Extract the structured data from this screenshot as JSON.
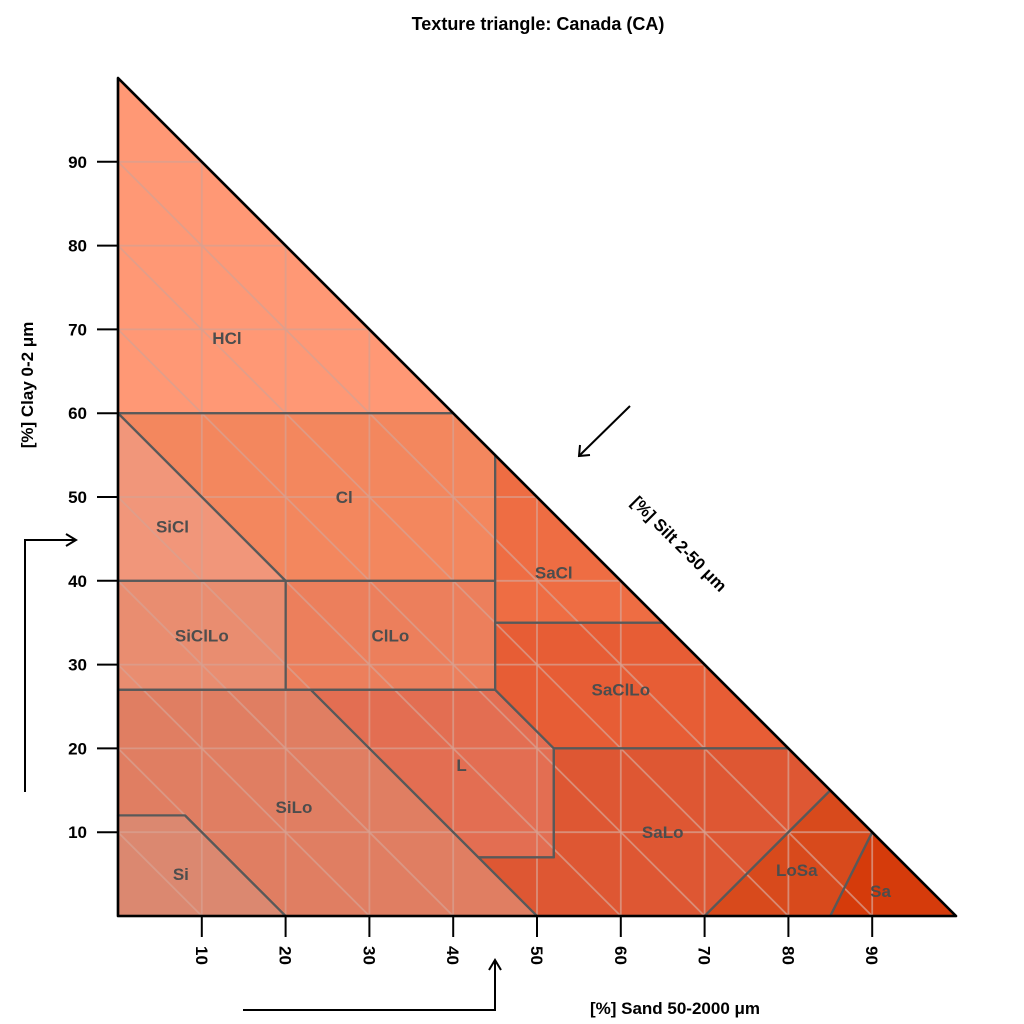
{
  "chart_data": {
    "type": "ternary",
    "title": "Texture triangle: Canada (CA)",
    "axes": {
      "x": {
        "label": "[%] Sand 50-2000 μm",
        "ticks": [
          10,
          20,
          30,
          40,
          50,
          60,
          70,
          80,
          90
        ]
      },
      "y": {
        "label": "[%] Clay 0-2 μm",
        "ticks": [
          10,
          20,
          30,
          40,
          50,
          60,
          70,
          80,
          90
        ]
      },
      "z": {
        "label": "[%] Silt 2-50 μm"
      }
    },
    "grid": true,
    "classes": [
      {
        "abbr": "HCl",
        "color": "#ff9875",
        "polygon": [
          [
            0,
            100
          ],
          [
            0,
            60
          ],
          [
            40,
            60
          ]
        ],
        "label_at": [
          13,
          69
        ]
      },
      {
        "abbr": "Cl",
        "color": "#f3875e",
        "polygon": [
          [
            0,
            60
          ],
          [
            40,
            60
          ],
          [
            45,
            55
          ],
          [
            45,
            40
          ],
          [
            20,
            40
          ]
        ],
        "label_at": [
          27,
          50
        ]
      },
      {
        "abbr": "SiCl",
        "color": "#f1967a",
        "polygon": [
          [
            0,
            60
          ],
          [
            20,
            40
          ],
          [
            0,
            40
          ]
        ],
        "label_at": [
          6.5,
          46.5
        ]
      },
      {
        "abbr": "SiClLo",
        "color": "#e98d70",
        "polygon": [
          [
            0,
            40
          ],
          [
            20,
            40
          ],
          [
            20,
            27
          ],
          [
            0,
            27
          ]
        ],
        "label_at": [
          10,
          33.5
        ]
      },
      {
        "abbr": "ClLo",
        "color": "#ec7f5c",
        "polygon": [
          [
            20,
            40
          ],
          [
            45,
            40
          ],
          [
            45,
            27
          ],
          [
            20,
            27
          ]
        ],
        "label_at": [
          32.5,
          33.5
        ]
      },
      {
        "abbr": "SaCl",
        "color": "#ee6d43",
        "polygon": [
          [
            45,
            55
          ],
          [
            45,
            35
          ],
          [
            65,
            35
          ]
        ],
        "label_at": [
          52,
          41
        ]
      },
      {
        "abbr": "SaClLo",
        "color": "#e75d35",
        "polygon": [
          [
            45,
            35
          ],
          [
            65,
            35
          ],
          [
            80,
            20
          ],
          [
            52,
            20
          ],
          [
            45,
            27
          ]
        ],
        "label_at": [
          60,
          27
        ]
      },
      {
        "abbr": "SiLo",
        "color": "#e07e62",
        "polygon": [
          [
            0,
            27
          ],
          [
            23,
            27
          ],
          [
            50,
            0
          ],
          [
            20,
            0
          ],
          [
            8,
            12
          ],
          [
            0,
            12
          ]
        ],
        "label_at": [
          21,
          13
        ]
      },
      {
        "abbr": "L",
        "color": "#e36e52",
        "polygon": [
          [
            23,
            27
          ],
          [
            45,
            27
          ],
          [
            52,
            20
          ],
          [
            52,
            7
          ],
          [
            43,
            7
          ]
        ],
        "label_at": [
          41,
          18
        ]
      },
      {
        "abbr": "Si",
        "color": "#db8870",
        "polygon": [
          [
            0,
            12
          ],
          [
            8,
            12
          ],
          [
            20,
            0
          ],
          [
            0,
            0
          ]
        ],
        "label_at": [
          7.5,
          5
        ]
      },
      {
        "abbr": "SaLo",
        "color": "#de5733",
        "polygon": [
          [
            52,
            20
          ],
          [
            80,
            20
          ],
          [
            85,
            15
          ],
          [
            80,
            10
          ],
          [
            70,
            0
          ],
          [
            50,
            0
          ],
          [
            43,
            7
          ],
          [
            52,
            7
          ]
        ],
        "label_at": [
          65,
          10
        ]
      },
      {
        "abbr": "LoSa",
        "color": "#d84a1c",
        "polygon": [
          [
            85,
            15
          ],
          [
            90,
            10
          ],
          [
            85,
            0
          ],
          [
            70,
            0
          ]
        ],
        "label_at": [
          81,
          5.5
        ]
      },
      {
        "abbr": "Sa",
        "color": "#d53b0b",
        "polygon": [
          [
            90,
            10
          ],
          [
            100,
            0
          ],
          [
            85,
            0
          ]
        ],
        "label_at": [
          91,
          3
        ]
      }
    ]
  }
}
